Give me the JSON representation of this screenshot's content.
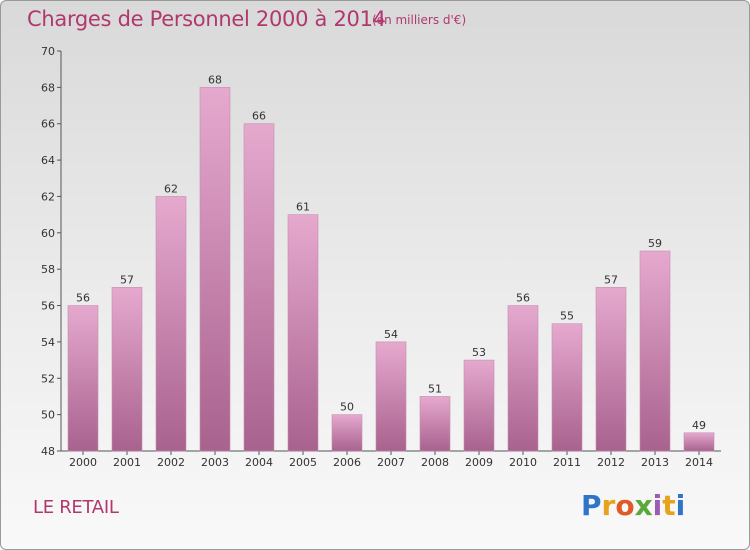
{
  "header": {
    "title": "Charges de Personnel 2000 à 2014",
    "unit": "(en milliers d'€)"
  },
  "footer": {
    "commune": "LE RETAIL",
    "brand_letters": [
      "P",
      "r",
      "o",
      "x",
      "i",
      "t",
      "i"
    ],
    "brand_colors": [
      "#2f74c6",
      "#e8a21b",
      "#e05a25",
      "#58a83a",
      "#9a5bb5",
      "#e8a21b",
      "#2f74c6"
    ]
  },
  "colors": {
    "bar_top": "#e6a9ce",
    "bar_bottom": "#a8628e",
    "text": "#b0386e"
  },
  "chart_data": {
    "type": "bar",
    "title": "Charges de Personnel 2000 à 2014",
    "subtitle": "(en milliers d'€)",
    "categories": [
      "2000",
      "2001",
      "2002",
      "2003",
      "2004",
      "2005",
      "2006",
      "2007",
      "2008",
      "2009",
      "2010",
      "2011",
      "2012",
      "2013",
      "2014"
    ],
    "values": [
      56,
      57,
      62,
      68,
      66,
      61,
      50,
      54,
      51,
      53,
      56,
      55,
      57,
      59,
      49
    ],
    "ylim": [
      48,
      70
    ],
    "yticks": [
      48,
      50,
      52,
      54,
      56,
      58,
      60,
      62,
      64,
      66,
      68,
      70
    ],
    "grid": false,
    "legend": "none"
  }
}
